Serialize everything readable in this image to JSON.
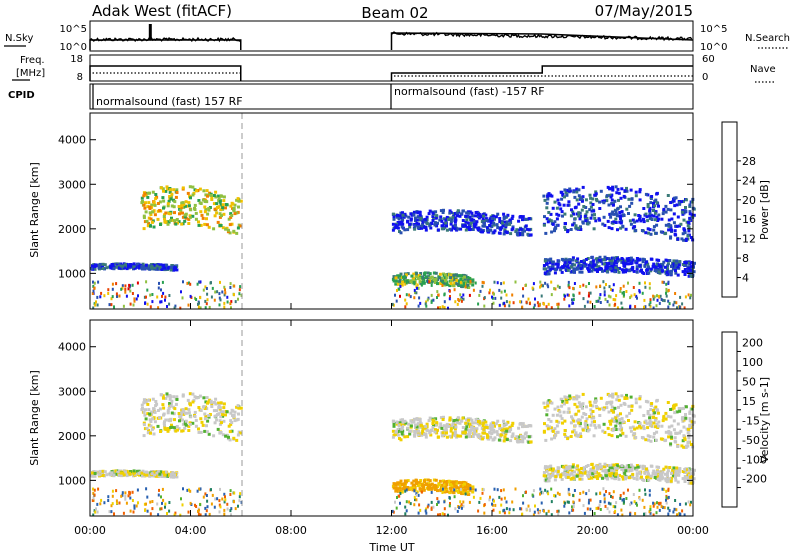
{
  "header": {
    "station": "Adak West (fitACF)",
    "beam": "Beam 02",
    "date": "07/May/2015"
  },
  "labels": {
    "nsky": "N.Sky",
    "nsearch": "N.Search",
    "freq_line1": "Freq.",
    "freq_line2": "[MHz]",
    "nave": "Nave",
    "cpid": "CPID",
    "cpid_first": "normalsound (fast) 157 RF",
    "cpid_second": "normalsound (fast) -157 RF",
    "time_axis": "Time UT",
    "slant_range_power": "Slant Range [km]",
    "slant_range_velocity": "Slant Range [km]"
  },
  "axes": {
    "noise_ticks_left": [
      "10^5",
      "10^0"
    ],
    "noise_ticks_right": [
      "10^5",
      "10^0"
    ],
    "freq_ticks_left": [
      "18",
      "8"
    ],
    "freq_ticks_right": [
      "60",
      "0"
    ],
    "range_ticks": [
      "1000",
      "2000",
      "3000",
      "4000"
    ],
    "time_ticks": [
      "00:00",
      "04:00",
      "08:00",
      "12:00",
      "16:00",
      "20:00",
      "00:00"
    ]
  },
  "colorbars": {
    "power": {
      "label": "Power [dB]",
      "ticks": [
        "4",
        "8",
        "12",
        "16",
        "20",
        "24",
        "28"
      ],
      "colors": [
        "#1010ee",
        "#2850b0",
        "#3a7a78",
        "#28a050",
        "#90c040",
        "#f0c000",
        "#f08000",
        "#e84000",
        "#e00000"
      ]
    },
    "velocity": {
      "label": "Velocity [m s-1]",
      "ticks": [
        "200",
        "100",
        "50",
        "15",
        "-15",
        "-50",
        "-100",
        "-200"
      ],
      "colors": [
        "#1030c0",
        "#2860b0",
        "#208060",
        "#50b030",
        "#c8c8c8",
        "#f0d000",
        "#f0a000",
        "#f06000",
        "#e00000"
      ]
    }
  },
  "chart_data": {
    "type": "heatmap",
    "xlabel": "Time UT",
    "xlim_hours": [
      0,
      24
    ],
    "ylabel": "Slant Range [km]",
    "ylim_km": [
      200,
      4600
    ],
    "panels": [
      "Power [dB]",
      "Velocity [m s-1]"
    ],
    "data_gap_hours": [
      6,
      12
    ],
    "scatter_regions": [
      {
        "t_start": 2.0,
        "t_end": 6.0,
        "range_min": 1850,
        "range_max": 3000,
        "power_db": 18,
        "velocity": -5
      },
      {
        "t_start": 0.0,
        "t_end": 3.4,
        "range_min": 1100,
        "range_max": 1250,
        "power_db": 6,
        "velocity": -5
      },
      {
        "t_start": 12.0,
        "t_end": 15.2,
        "range_min": 700,
        "range_max": 1050,
        "power_db": 14,
        "velocity": -60
      },
      {
        "t_start": 12.0,
        "t_end": 17.5,
        "range_min": 1850,
        "range_max": 2450,
        "power_db": 5,
        "velocity": -5
      },
      {
        "t_start": 18.0,
        "t_end": 24.0,
        "range_min": 1700,
        "range_max": 3000,
        "power_db": 6,
        "velocity": -5
      },
      {
        "t_start": 18.0,
        "t_end": 24.0,
        "range_min": 950,
        "range_max": 1400,
        "power_db": 5,
        "velocity": -5
      }
    ]
  }
}
